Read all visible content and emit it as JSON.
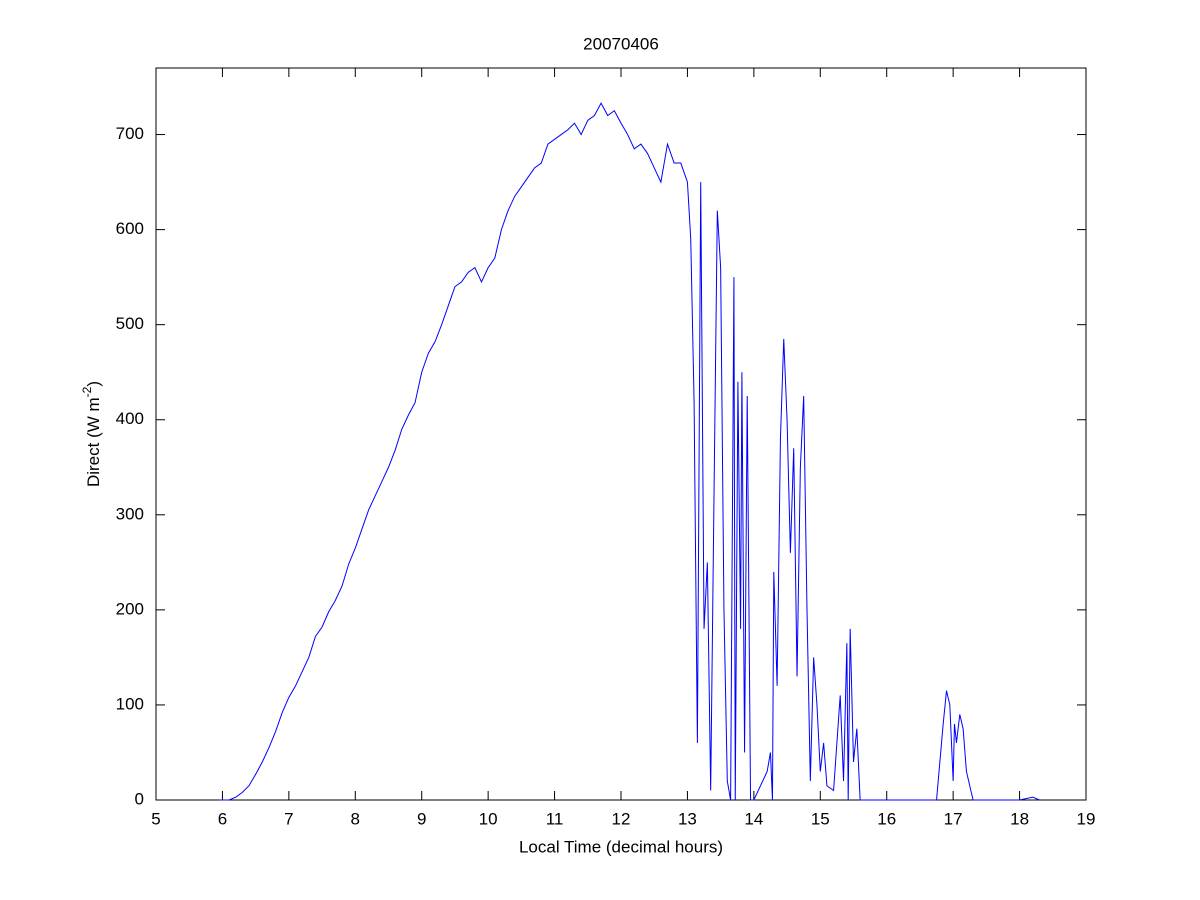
{
  "chart_data": {
    "type": "line",
    "title": "20070406",
    "xlabel": "Local Time (decimal hours)",
    "ylabel": [
      "Direct (W m",
      "-2",
      ")"
    ],
    "xlim": [
      5,
      19
    ],
    "xticks": [
      5,
      6,
      7,
      8,
      9,
      10,
      11,
      12,
      13,
      14,
      15,
      16,
      17,
      18,
      19
    ],
    "ylim": [
      0,
      770
    ],
    "yticks": [
      0,
      100,
      200,
      300,
      400,
      500,
      600,
      700
    ],
    "grid": false,
    "series": [
      {
        "color": "#0000ff",
        "x": [
          5.95,
          6.1,
          6.2,
          6.3,
          6.4,
          6.5,
          6.6,
          6.7,
          6.8,
          6.9,
          7.0,
          7.1,
          7.2,
          7.3,
          7.4,
          7.5,
          7.6,
          7.7,
          7.8,
          7.9,
          8.0,
          8.1,
          8.2,
          8.3,
          8.4,
          8.5,
          8.6,
          8.7,
          8.8,
          8.9,
          9.0,
          9.1,
          9.2,
          9.3,
          9.4,
          9.5,
          9.6,
          9.7,
          9.8,
          9.9,
          10.0,
          10.1,
          10.2,
          10.3,
          10.4,
          10.5,
          10.6,
          10.7,
          10.8,
          10.9,
          11.0,
          11.1,
          11.2,
          11.3,
          11.4,
          11.5,
          11.6,
          11.7,
          11.8,
          11.9,
          12.0,
          12.1,
          12.2,
          12.3,
          12.4,
          12.5,
          12.6,
          12.7,
          12.8,
          12.9,
          13.0,
          13.05,
          13.1,
          13.15,
          13.2,
          13.25,
          13.3,
          13.35,
          13.4,
          13.45,
          13.5,
          13.55,
          13.6,
          13.65,
          13.7,
          13.72,
          13.76,
          13.8,
          13.82,
          13.86,
          13.9,
          13.95,
          14.0,
          14.2,
          14.25,
          14.28,
          14.3,
          14.35,
          14.4,
          14.45,
          14.5,
          14.55,
          14.6,
          14.65,
          14.7,
          14.75,
          14.8,
          14.85,
          14.9,
          14.95,
          15.0,
          15.05,
          15.1,
          15.2,
          15.3,
          15.35,
          15.4,
          15.42,
          15.45,
          15.5,
          15.55,
          15.6,
          16.0,
          16.5,
          16.75,
          16.8,
          16.85,
          16.9,
          16.95,
          17.0,
          17.02,
          17.05,
          17.1,
          17.15,
          17.2,
          17.3,
          18.0,
          18.2,
          18.3
        ],
        "values": [
          0,
          0,
          3,
          8,
          15,
          27,
          40,
          55,
          72,
          92,
          108,
          120,
          135,
          150,
          172,
          182,
          198,
          210,
          225,
          248,
          265,
          285,
          305,
          320,
          335,
          350,
          368,
          390,
          405,
          418,
          450,
          470,
          482,
          500,
          520,
          540,
          545,
          555,
          560,
          545,
          560,
          570,
          600,
          620,
          635,
          645,
          655,
          665,
          670,
          690,
          695,
          700,
          705,
          712,
          700,
          715,
          720,
          733,
          720,
          725,
          712,
          700,
          685,
          690,
          680,
          665,
          650,
          690,
          670,
          670,
          650,
          590,
          420,
          60,
          650,
          180,
          250,
          10,
          320,
          620,
          560,
          200,
          20,
          0,
          550,
          0,
          440,
          180,
          450,
          50,
          425,
          0,
          0,
          30,
          50,
          0,
          240,
          120,
          380,
          485,
          400,
          260,
          370,
          130,
          350,
          425,
          200,
          20,
          150,
          100,
          30,
          60,
          15,
          10,
          110,
          20,
          165,
          0,
          180,
          40,
          75,
          0,
          0,
          0,
          0,
          40,
          80,
          115,
          100,
          20,
          80,
          60,
          90,
          75,
          30,
          0,
          0,
          3,
          0
        ]
      }
    ]
  }
}
